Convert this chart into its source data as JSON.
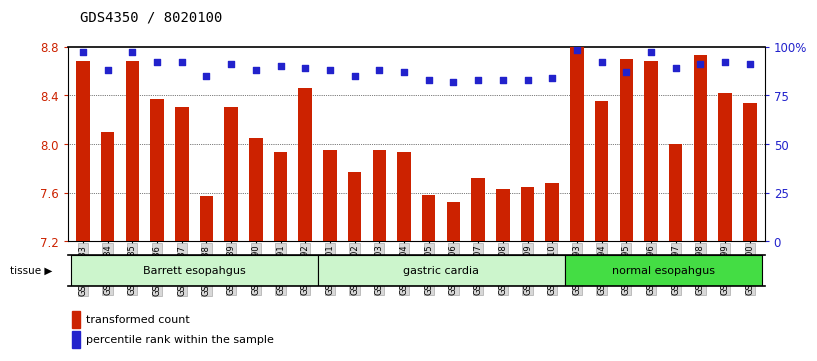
{
  "title": "GDS4350 / 8020100",
  "samples": [
    "GSM851983",
    "GSM851984",
    "GSM851985",
    "GSM851986",
    "GSM851987",
    "GSM851988",
    "GSM851989",
    "GSM851990",
    "GSM851991",
    "GSM851992",
    "GSM852001",
    "GSM852002",
    "GSM852003",
    "GSM852004",
    "GSM852005",
    "GSM852006",
    "GSM852007",
    "GSM852008",
    "GSM852009",
    "GSM852010",
    "GSM851993",
    "GSM851994",
    "GSM851995",
    "GSM851996",
    "GSM851997",
    "GSM851998",
    "GSM851999",
    "GSM852000"
  ],
  "bar_values": [
    8.68,
    8.1,
    8.68,
    8.37,
    8.3,
    7.57,
    8.3,
    8.05,
    7.93,
    8.46,
    7.95,
    7.77,
    7.95,
    7.93,
    7.58,
    7.52,
    7.72,
    7.63,
    7.65,
    7.68,
    8.8,
    8.35,
    8.7,
    8.68,
    8.0,
    8.73,
    8.42,
    8.34
  ],
  "percentile_values": [
    97,
    88,
    97,
    92,
    92,
    85,
    91,
    88,
    90,
    89,
    88,
    85,
    88,
    87,
    83,
    82,
    83,
    83,
    83,
    84,
    98,
    92,
    87,
    97,
    89,
    91,
    92,
    91
  ],
  "group_bounds": [
    {
      "start": 0,
      "end": 10,
      "label": "Barrett esopahgus",
      "color": "#ccf5cc"
    },
    {
      "start": 10,
      "end": 20,
      "label": "gastric cardia",
      "color": "#ccf5cc"
    },
    {
      "start": 20,
      "end": 28,
      "label": "normal esopahgus",
      "color": "#44dd44"
    }
  ],
  "ylim_left": [
    7.2,
    8.8
  ],
  "ylim_right": [
    0,
    100
  ],
  "left_ticks": [
    7.2,
    7.6,
    8.0,
    8.4,
    8.8
  ],
  "right_ticks": [
    0,
    25,
    50,
    75,
    100
  ],
  "grid_lines": [
    7.6,
    8.0,
    8.4
  ],
  "bar_color": "#cc2200",
  "dot_color": "#2222cc",
  "tick_color_left": "#cc2200",
  "tick_color_right": "#2222cc",
  "title_fontsize": 10,
  "bar_width": 0.55,
  "dot_size": 16
}
